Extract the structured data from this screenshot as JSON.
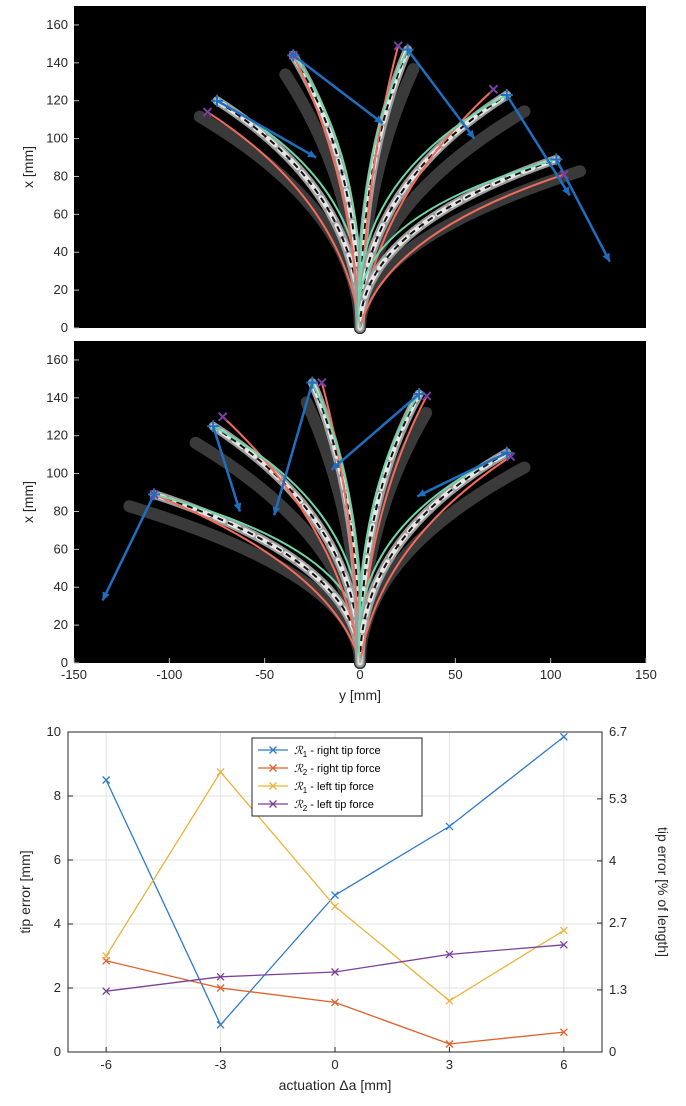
{
  "chart_data": [
    {
      "type": "image-overlay-plot",
      "panel": "top",
      "xlabel": "",
      "ylabel": "x [mm]",
      "ylim": [
        0,
        170
      ],
      "xlim": [
        -150,
        150
      ],
      "y_ticks": [
        "0",
        "20",
        "40",
        "60",
        "80",
        "100",
        "120",
        "140",
        "160"
      ],
      "x_ticks": [
        "-150",
        "-100",
        "-50",
        "0",
        "50",
        "100",
        "150"
      ],
      "colors": {
        "series_1": "#f26b5b",
        "series_2": "#6fd6a8",
        "arrow": "#1f6fc0",
        "tip_marker_1": "#1f6fc0",
        "tip_marker_2": "#7b3f9e",
        "background": "#000000"
      },
      "tips": [
        {
          "plus": [
            -75,
            120
          ],
          "cross": [
            -80,
            114
          ],
          "arrow_to": [
            -23,
            90
          ]
        },
        {
          "plus": [
            -35,
            144
          ],
          "cross": [
            -35,
            144
          ],
          "arrow_to": [
            12,
            108
          ]
        },
        {
          "plus": [
            25,
            147
          ],
          "cross": [
            20,
            149
          ],
          "arrow_to": [
            60,
            100
          ]
        },
        {
          "plus": [
            77,
            123
          ],
          "cross": [
            70,
            126
          ],
          "arrow_to": [
            110,
            70
          ]
        },
        {
          "plus": [
            103,
            89
          ],
          "cross": [
            107,
            81
          ],
          "arrow_to": [
            131,
            35
          ]
        }
      ]
    },
    {
      "type": "image-overlay-plot",
      "panel": "middle",
      "xlabel": "y [mm]",
      "ylabel": "x [mm]",
      "ylim": [
        0,
        170
      ],
      "xlim": [
        -150,
        150
      ],
      "y_ticks": [
        "0",
        "20",
        "40",
        "60",
        "80",
        "100",
        "120",
        "140",
        "160"
      ],
      "x_ticks": [
        "-150",
        "-100",
        "-50",
        "0",
        "50",
        "100",
        "150"
      ],
      "colors": {
        "series_1": "#f26b5b",
        "series_2": "#6fd6a8",
        "arrow": "#1f6fc0",
        "tip_marker_1": "#1f6fc0",
        "tip_marker_2": "#7b3f9e",
        "background": "#000000"
      },
      "tips": [
        {
          "plus": [
            -108,
            89
          ],
          "cross": [
            -108,
            89
          ],
          "arrow_to": [
            -135,
            33
          ]
        },
        {
          "plus": [
            -77,
            125
          ],
          "cross": [
            -72,
            130
          ],
          "arrow_to": [
            -63,
            80
          ]
        },
        {
          "plus": [
            -25,
            148
          ],
          "cross": [
            -20,
            148
          ],
          "arrow_to": [
            -45,
            78
          ]
        },
        {
          "plus": [
            31,
            142
          ],
          "cross": [
            35,
            141
          ],
          "arrow_to": [
            -15,
            102
          ]
        },
        {
          "plus": [
            77,
            111
          ],
          "cross": [
            79,
            109
          ],
          "arrow_to": [
            30,
            88
          ]
        }
      ]
    },
    {
      "type": "line",
      "x": [
        -6,
        -3,
        0,
        3,
        6
      ],
      "x_ticks": [
        "-6",
        "-3",
        "0",
        "3",
        "6"
      ],
      "xlim": [
        -7,
        7
      ],
      "ylim": [
        0,
        10
      ],
      "y_ticks": [
        "0",
        "2",
        "4",
        "6",
        "8",
        "10"
      ],
      "y2lim": [
        0,
        6.7
      ],
      "y2_ticks": [
        "0",
        "1.3",
        "2.7",
        "4",
        "5.3",
        "6.7"
      ],
      "xlabel": "actuation Δa [mm]",
      "ylabel": "tip error [mm]",
      "y2label": "tip error [% of length]",
      "grid": true,
      "legend_placement": "top-center",
      "series": [
        {
          "name_sym": "ℛ",
          "name_sub": "1",
          "name_rest": " - right tip force",
          "color": "#2f79c9",
          "values": [
            8.5,
            0.85,
            4.9,
            7.05,
            9.85
          ]
        },
        {
          "name_sym": "ℛ",
          "name_sub": "2",
          "name_rest": " - right tip force",
          "color": "#e0612a",
          "values": [
            2.85,
            2.0,
            1.55,
            0.25,
            0.62
          ]
        },
        {
          "name_sym": "ℛ",
          "name_sub": "1",
          "name_rest": " - left tip force",
          "color": "#eab43b",
          "values": [
            3.0,
            8.75,
            4.55,
            1.6,
            3.8
          ]
        },
        {
          "name_sym": "ℛ",
          "name_sub": "2",
          "name_rest": " - left tip force",
          "color": "#7b3e99",
          "values": [
            1.9,
            2.35,
            2.5,
            3.05,
            3.35
          ]
        }
      ]
    }
  ]
}
